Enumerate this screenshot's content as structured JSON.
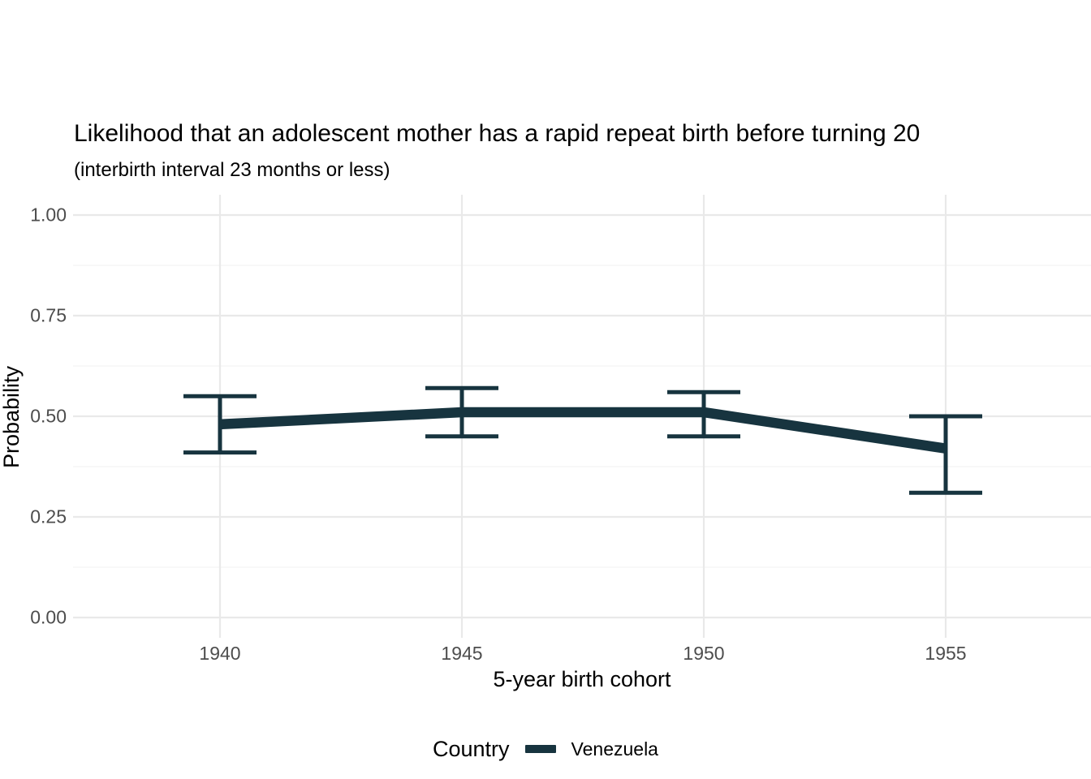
{
  "title": "Likelihood that an adolescent mother has a rapid repeat birth before turning 20",
  "subtitle": "(interbirth interval 23 months or less)",
  "colors": {
    "background": "#ffffff",
    "series": "#17343f",
    "grid_major": "#e9e9e9",
    "grid_minor": "#f3f3f3",
    "axis_text": "#4d4d4d",
    "text": "#000000"
  },
  "chart_data": {
    "type": "line",
    "title": "Likelihood that an adolescent mother has a rapid repeat birth before turning 20",
    "subtitle": "(interbirth interval 23 months or less)",
    "xlabel": "5-year birth cohort",
    "ylabel": "Probability",
    "x": [
      1940,
      1945,
      1950,
      1955
    ],
    "series": [
      {
        "name": "Venezuela",
        "color": "#17343f",
        "values": [
          0.48,
          0.51,
          0.51,
          0.42
        ],
        "ci_low": [
          0.41,
          0.45,
          0.45,
          0.31
        ],
        "ci_high": [
          0.55,
          0.57,
          0.56,
          0.5
        ]
      }
    ],
    "error_bars": true,
    "x_ticks": [
      1940,
      1945,
      1950,
      1955
    ],
    "y_ticks": [
      0.0,
      0.25,
      0.5,
      0.75,
      1.0
    ],
    "y_tick_labels": [
      "0.00",
      "0.25",
      "0.50",
      "0.75",
      "1.00"
    ],
    "y_minor_gridlines": [
      0.125,
      0.375,
      0.625,
      0.875
    ],
    "ylim": [
      0,
      1
    ],
    "xlim": [
      1940,
      1955
    ],
    "grid": true,
    "legend": {
      "title": "Country",
      "position": "bottom",
      "entries": [
        "Venezuela"
      ]
    }
  }
}
